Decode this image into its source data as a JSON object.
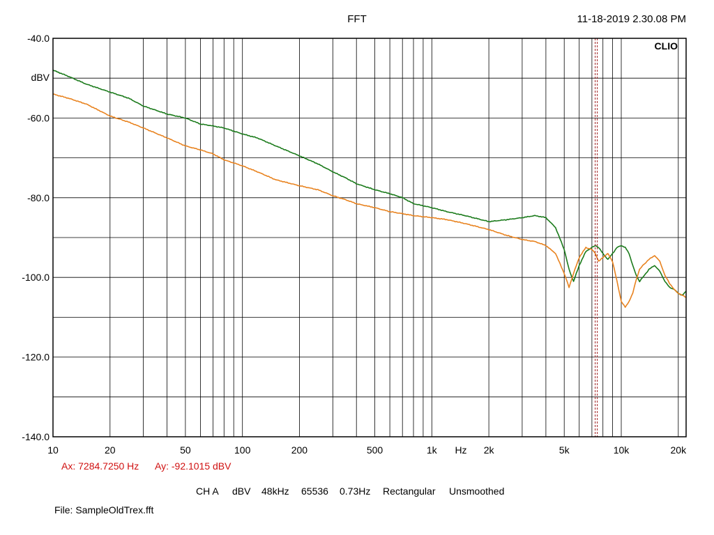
{
  "header": {
    "title": "FFT",
    "timestamp": "11-18-2019 2.30.08 PM",
    "brand": "CLIO"
  },
  "cursor": {
    "ax_text": "Ax: 7284.7250 Hz",
    "ay_text": "Ay: -92.1015 dBV",
    "freq_hz": 7284.725
  },
  "settings": {
    "channel": "CH A",
    "unit": "dBV",
    "sample_rate": "48kHz",
    "fft_size": "65536",
    "resolution": "0.73Hz",
    "window": "Rectangular",
    "smoothing": "Unsmoothed"
  },
  "file": {
    "text": "File: SampleOldTrex.fft"
  },
  "colors": {
    "green": "#1a7a1a",
    "orange": "#e8821e",
    "cursor": "#a02020",
    "cursor_text": "#d01010",
    "grid": "#000000"
  },
  "chart_data": {
    "type": "line",
    "x_scale": "log",
    "xlim": [
      10,
      22000
    ],
    "ylim": [
      -140,
      -40
    ],
    "ylabel": "dBV",
    "xlabel": "Hz",
    "grid": true,
    "x_ticks": [
      {
        "v": 10,
        "label": "10"
      },
      {
        "v": 20,
        "label": "20"
      },
      {
        "v": 50,
        "label": "50"
      },
      {
        "v": 100,
        "label": "100"
      },
      {
        "v": 200,
        "label": "200"
      },
      {
        "v": 500,
        "label": "500"
      },
      {
        "v": 1000,
        "label": "1k"
      },
      {
        "v": 2000,
        "label": "2k"
      },
      {
        "v": 5000,
        "label": "5k"
      },
      {
        "v": 10000,
        "label": "10k"
      },
      {
        "v": 20000,
        "label": "20k"
      }
    ],
    "y_ticks": [
      {
        "v": -40,
        "label": "-40.0"
      },
      {
        "v": -60,
        "label": "-60.0"
      },
      {
        "v": -80,
        "label": "-80.0"
      },
      {
        "v": -100,
        "label": "-100.0"
      },
      {
        "v": -120,
        "label": "-120.0"
      },
      {
        "v": -140,
        "label": "-140.0"
      }
    ],
    "series": [
      {
        "color": "#1a7a1a",
        "x": [
          10,
          12,
          15,
          20,
          25,
          30,
          40,
          50,
          60,
          70,
          80,
          100,
          120,
          150,
          200,
          250,
          300,
          350,
          400,
          500,
          600,
          700,
          800,
          1000,
          1200,
          1500,
          2000,
          2500,
          3000,
          3500,
          4000,
          4500,
          5000,
          5300,
          5600,
          6000,
          6500,
          7000,
          7300,
          7600,
          8000,
          8500,
          9000,
          9500,
          10000,
          10500,
          11000,
          11500,
          12000,
          12500,
          13000,
          14000,
          15000,
          16000,
          17000,
          18000,
          19000,
          20000,
          21000,
          22000
        ],
        "y": [
          -48,
          -49.5,
          -51.5,
          -53.5,
          -55,
          -57,
          -59,
          -60,
          -61.5,
          -62,
          -62.5,
          -64,
          -65,
          -67,
          -69.5,
          -71.5,
          -73.5,
          -75,
          -76.5,
          -78,
          -79,
          -80,
          -81.5,
          -82.5,
          -83.5,
          -84.5,
          -86,
          -85.5,
          -85,
          -84.5,
          -85,
          -87.5,
          -93,
          -98,
          -101,
          -97,
          -93.5,
          -92.5,
          -92,
          -92.5,
          -94,
          -95.5,
          -94,
          -92.5,
          -92,
          -92.5,
          -94,
          -97,
          -99.5,
          -101,
          -100,
          -98,
          -97,
          -98.5,
          -101,
          -102.5,
          -103,
          -104,
          -104.5,
          -103.5
        ]
      },
      {
        "color": "#e8821e",
        "x": [
          10,
          12,
          15,
          20,
          25,
          30,
          40,
          50,
          60,
          70,
          80,
          100,
          120,
          150,
          200,
          250,
          300,
          350,
          400,
          500,
          600,
          700,
          800,
          1000,
          1200,
          1500,
          2000,
          2500,
          3000,
          3500,
          4000,
          4500,
          5000,
          5300,
          5600,
          6000,
          6500,
          7000,
          7300,
          7600,
          8000,
          8500,
          9000,
          9500,
          10000,
          10500,
          11000,
          11500,
          12000,
          12500,
          13000,
          14000,
          15000,
          16000,
          17000,
          18000,
          19000,
          20000,
          21000,
          22000
        ],
        "y": [
          -54,
          -55,
          -56.5,
          -59.5,
          -61,
          -62.5,
          -65,
          -67,
          -68,
          -69,
          -70.5,
          -72,
          -73.5,
          -75.5,
          -77,
          -78,
          -79.5,
          -80.5,
          -81.5,
          -82.5,
          -83.5,
          -84,
          -84.5,
          -85,
          -85.5,
          -86.5,
          -88,
          -89.5,
          -90.5,
          -91,
          -92,
          -94,
          -99,
          -102.5,
          -99,
          -95,
          -92.5,
          -93,
          -94,
          -96,
          -95,
          -94,
          -96,
          -101,
          -106,
          -107.5,
          -106,
          -104,
          -100.5,
          -98,
          -97,
          -95.5,
          -94.5,
          -96,
          -99.5,
          -101.5,
          -103,
          -104,
          -104.5,
          -105
        ]
      }
    ]
  }
}
